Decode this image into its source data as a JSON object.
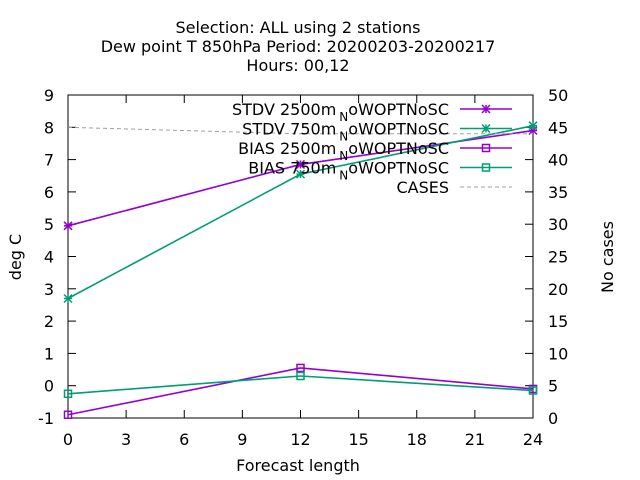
{
  "chart_data": {
    "type": "line",
    "title_lines": [
      "Selection: ALL using     2 stations",
      "Dew point T 850hPa   Period: 20200203-20200217",
      "Hours:  00,12"
    ],
    "xlabel": "Forecast length",
    "ylabel": "deg C",
    "y2label": "No cases",
    "xlim": [
      0,
      24
    ],
    "ylim": [
      -1,
      9
    ],
    "y2lim": [
      0,
      50
    ],
    "xticks": [
      "0",
      "3",
      "6",
      "9",
      "12",
      "15",
      "18",
      "21",
      "24"
    ],
    "yticks": [
      "-1",
      "0",
      "1",
      "2",
      "3",
      "4",
      "5",
      "6",
      "7",
      "8",
      "9"
    ],
    "y2ticks": [
      "0",
      "5",
      "10",
      "15",
      "20",
      "25",
      "30",
      "35",
      "40",
      "45",
      "50"
    ],
    "x": [
      0,
      12,
      24
    ],
    "grid": false,
    "legend_position": "top-right",
    "series": [
      {
        "name": "STDV 2500m_NoWOPTNoSC",
        "legend_text": "STDV 2500m",
        "legend_sub": "N",
        "legend_tail": "oWOPTNoSC",
        "values": [
          4.95,
          6.85,
          7.9
        ],
        "color": "#9400d3",
        "marker": "star",
        "axis": "y1"
      },
      {
        "name": "STDV 750m_NoWOPTNoSC",
        "legend_text": "STDV 750m",
        "legend_sub": "N",
        "legend_tail": "oWOPTNoSC",
        "values": [
          2.7,
          6.55,
          8.05
        ],
        "color": "#009e73",
        "marker": "star",
        "axis": "y1"
      },
      {
        "name": "BIAS 2500m_NoWOPTNoSC",
        "legend_text": "BIAS 2500m",
        "legend_sub": "N",
        "legend_tail": "oWOPTNoSC",
        "values": [
          -0.9,
          0.55,
          -0.1
        ],
        "color": "#9400d3",
        "marker": "square",
        "axis": "y1"
      },
      {
        "name": "BIAS 750m_NoWOPTNoSC",
        "legend_text": "BIAS 750m",
        "legend_sub": "N",
        "legend_tail": "oWOPTNoSC",
        "values": [
          -0.25,
          0.3,
          -0.15
        ],
        "color": "#009e73",
        "marker": "square",
        "axis": "y1"
      },
      {
        "name": "CASES",
        "legend_text": "CASES",
        "legend_sub": "",
        "legend_tail": "",
        "values": [
          45,
          44,
          44
        ],
        "color": "#a0a0a0",
        "marker": "none",
        "dashed": true,
        "axis": "y2"
      }
    ]
  }
}
